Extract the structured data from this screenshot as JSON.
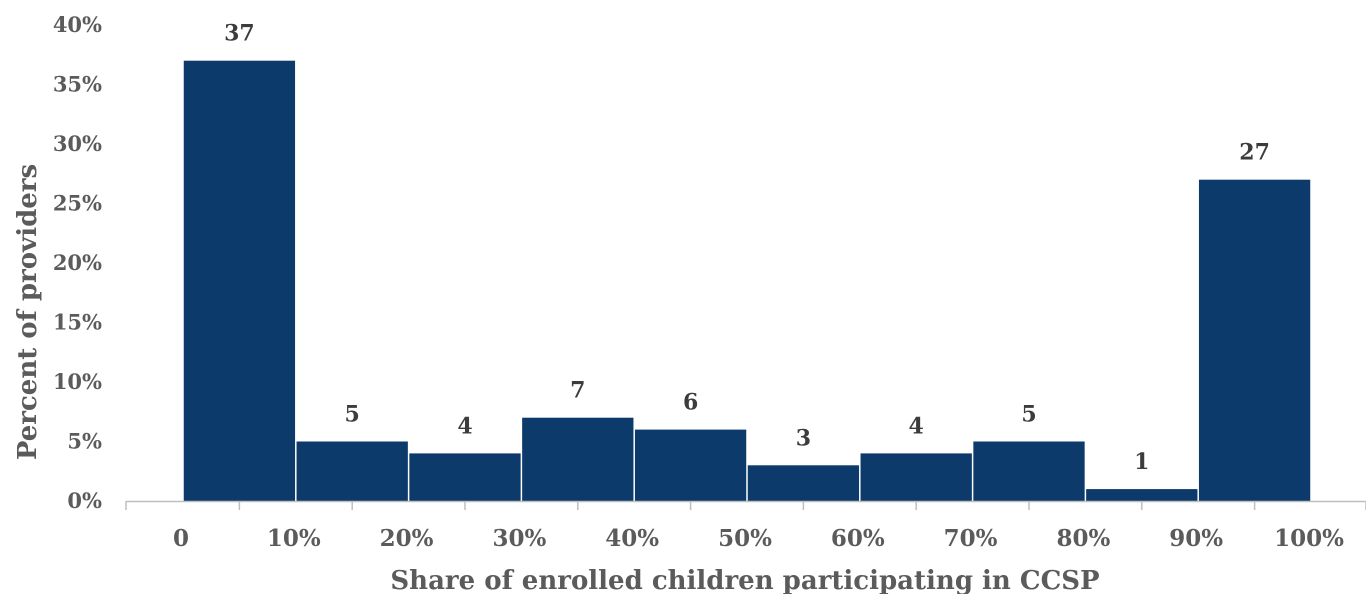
{
  "chart_data": {
    "type": "bar",
    "title": "",
    "xlabel": "Share of enrolled children participating in CCSP",
    "ylabel": "Percent of providers",
    "bins": [
      "0-10%",
      "10-20%",
      "20-30%",
      "30-40%",
      "40-50%",
      "50-60%",
      "60-70%",
      "70-80%",
      "80-90%",
      "90-100%"
    ],
    "values": [
      37,
      5,
      4,
      7,
      6,
      3,
      4,
      5,
      1,
      27
    ],
    "data_labels": [
      "37",
      "5",
      "4",
      "7",
      "6",
      "3",
      "4",
      "5",
      "1",
      "27"
    ],
    "x_tick_labels": [
      "0",
      "10%",
      "20%",
      "30%",
      "40%",
      "50%",
      "60%",
      "70%",
      "80%",
      "90%",
      "100%"
    ],
    "y_tick_labels": [
      "0%",
      "5%",
      "10%",
      "15%",
      "20%",
      "25%",
      "30%",
      "35%",
      "40%"
    ],
    "ylim": [
      0,
      40
    ],
    "grid": false,
    "legend": "none",
    "colors": {
      "bar": "#0b3a6b",
      "axis": "#bfbfbf",
      "text": "#5b5b5b"
    }
  }
}
